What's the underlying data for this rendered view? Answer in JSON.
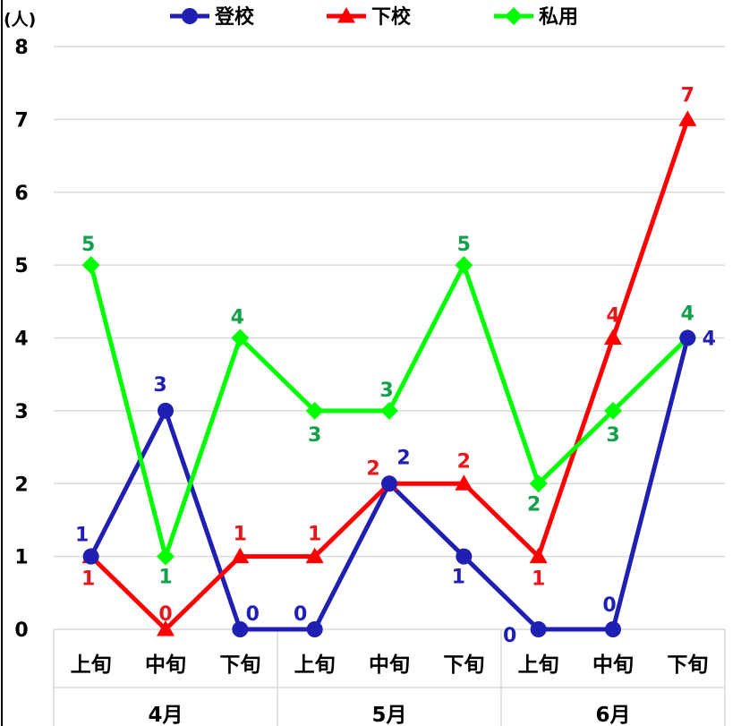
{
  "chart_data": {
    "type": "line",
    "unit_label": "(人)",
    "ylim": [
      0,
      8
    ],
    "yticks": [
      "0",
      "1",
      "2",
      "3",
      "4",
      "5",
      "6",
      "7",
      "8"
    ],
    "categories": [
      "上旬",
      "中旬",
      "下旬",
      "上旬",
      "中旬",
      "下旬",
      "上旬",
      "中旬",
      "下旬"
    ],
    "groups": [
      "4月",
      "5月",
      "6月"
    ],
    "grid": true,
    "legend_position": "top",
    "series": [
      {
        "name": "登校",
        "color": "#1F1FB4",
        "marker": "circle",
        "label_color": "#1F1FB4",
        "values": [
          1,
          3,
          0,
          0,
          2,
          1,
          0,
          0,
          4
        ]
      },
      {
        "name": "下校",
        "color": "#FF0000",
        "marker": "triangle",
        "label_color": "#E8151B",
        "values": [
          1,
          0,
          1,
          1,
          2,
          2,
          1,
          4,
          7
        ]
      },
      {
        "name": "私用",
        "color": "#00FF00",
        "marker": "diamond",
        "label_color": "#13A04A",
        "values": [
          5,
          1,
          4,
          3,
          3,
          5,
          2,
          3,
          4
        ]
      }
    ]
  }
}
